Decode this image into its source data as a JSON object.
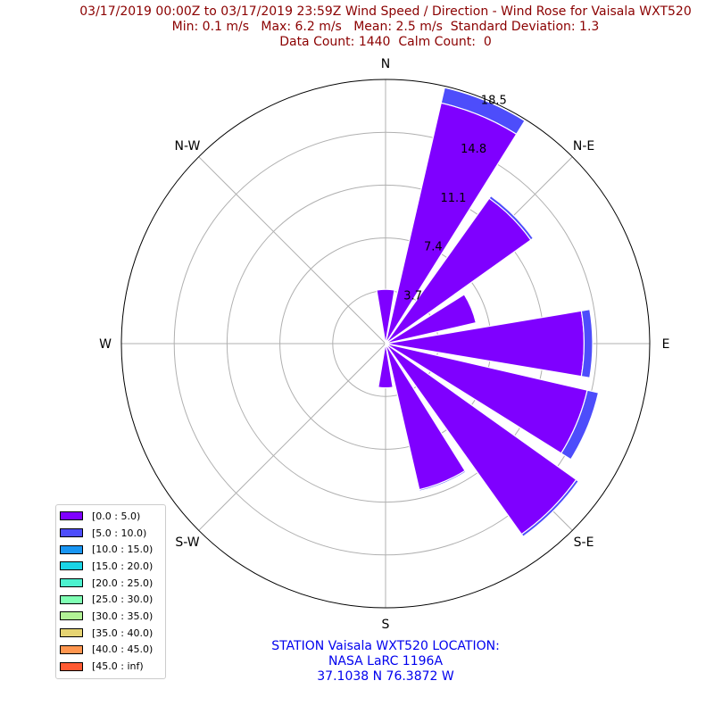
{
  "title": {
    "line1": "03/17/2019 00:00Z to 03/17/2019 23:59Z Wind Speed / Direction - Wind Rose for Vaisala WXT520",
    "line2": "Min: 0.1 m/s   Max: 6.2 m/s   Mean: 2.5 m/s  Standard Deviation: 1.3",
    "line3": "Data Count: 1440  Calm Count:  0"
  },
  "station": {
    "line1": "STATION Vaisala WXT520 LOCATION:",
    "line2": "NASA LaRC 1196A",
    "line3": "37.1038 N 76.3872 W"
  },
  "chart_data": {
    "type": "windrose",
    "directions": [
      "N",
      "N-E",
      "E",
      "S-E",
      "S",
      "S-W",
      "W",
      "N-W"
    ],
    "radial_ticks": [
      "3.7",
      "7.4",
      "11.1",
      "14.8",
      "18.5"
    ],
    "rmax": 18.5,
    "grid": true,
    "legend_position": "bottom-left",
    "speed_bins": [
      {
        "label": "[0.0 : 5.0)",
        "color": "#7f00ff"
      },
      {
        "label": "[5.0 : 10.0)",
        "color": "#4d4dfb"
      },
      {
        "label": "[10.0 : 15.0)",
        "color": "#1996f3"
      },
      {
        "label": "[15.0 : 20.0)",
        "color": "#1ad4e6"
      },
      {
        "label": "[20.0 : 25.0)",
        "color": "#4cf2cf"
      },
      {
        "label": "[25.0 : 30.0)",
        "color": "#80ffb4"
      },
      {
        "label": "[30.0 : 35.0)",
        "color": "#b2f296"
      },
      {
        "label": "[35.0 : 40.0)",
        "color": "#e6d473"
      },
      {
        "label": "[40.0 : 45.0)",
        "color": "#ff964f"
      },
      {
        "label": "[45.0 : inf)",
        "color": "#ff5a33"
      }
    ],
    "sectors": [
      {
        "direction_deg": 0,
        "values": [
          3.8,
          0.0
        ]
      },
      {
        "direction_deg": 22.5,
        "values": [
          17.3,
          1.1
        ]
      },
      {
        "direction_deg": 45,
        "values": [
          12.5,
          0.2
        ]
      },
      {
        "direction_deg": 67.5,
        "values": [
          6.5,
          0.0
        ]
      },
      {
        "direction_deg": 90,
        "values": [
          13.9,
          0.6
        ]
      },
      {
        "direction_deg": 112.5,
        "values": [
          14.5,
          0.8
        ]
      },
      {
        "direction_deg": 135,
        "values": [
          16.4,
          0.2
        ]
      },
      {
        "direction_deg": 157.5,
        "values": [
          10.5,
          0.1
        ]
      },
      {
        "direction_deg": 180,
        "values": [
          3.1,
          0.0
        ]
      }
    ]
  }
}
